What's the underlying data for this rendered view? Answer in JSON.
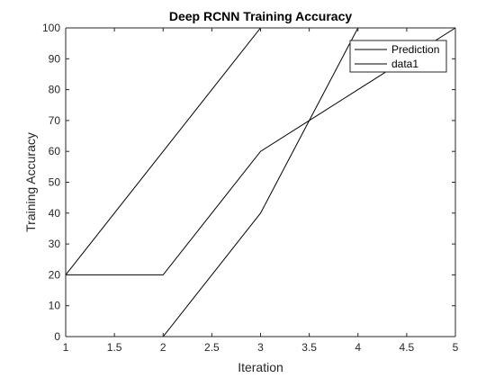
{
  "chart_data": {
    "type": "line",
    "title": "Deep RCNN Training Accuracy",
    "xlabel": "Iteration",
    "ylabel": "Training Accuracy",
    "xlim": [
      1,
      5
    ],
    "ylim": [
      0,
      100
    ],
    "xticks": [
      1,
      1.5,
      2,
      2.5,
      3,
      3.5,
      4,
      4.5,
      5
    ],
    "xtick_labels": [
      "1",
      "1.5",
      "2",
      "2.5",
      "3",
      "3.5",
      "4",
      "4.5",
      "5"
    ],
    "yticks": [
      0,
      10,
      20,
      30,
      40,
      50,
      60,
      70,
      80,
      90,
      100
    ],
    "ytick_labels": [
      "0",
      "10",
      "20",
      "30",
      "40",
      "50",
      "60",
      "70",
      "80",
      "90",
      "100"
    ],
    "grid": false,
    "legend_position": "top-right",
    "legend": [
      "Prediction",
      "data1"
    ],
    "series": [
      {
        "x": [
          1,
          2,
          3,
          4,
          5
        ],
        "y": [
          0,
          0,
          40,
          100,
          100
        ]
      },
      {
        "x": [
          1,
          2,
          3,
          4,
          5
        ],
        "y": [
          20,
          20,
          60,
          80,
          100
        ]
      },
      {
        "x": [
          1,
          2,
          3,
          4,
          5
        ],
        "y": [
          20,
          60,
          100,
          100,
          100
        ]
      }
    ],
    "line_color": "#000000"
  }
}
